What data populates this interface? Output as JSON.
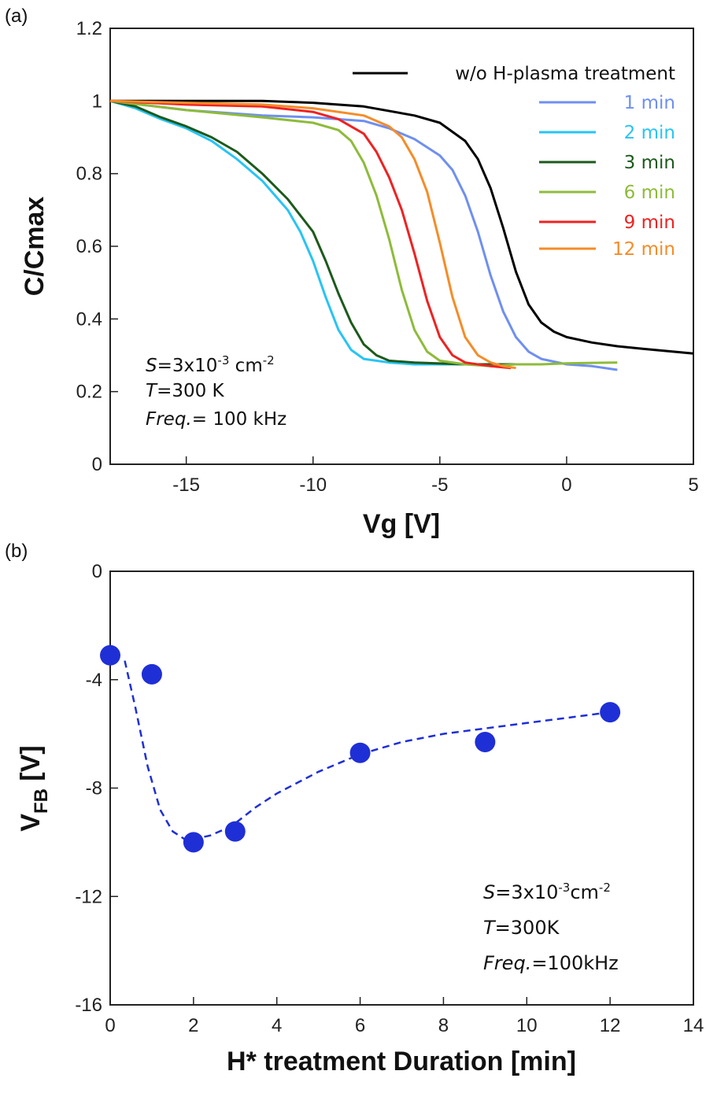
{
  "panel_labels": {
    "a": "(a)",
    "b": "(b)"
  },
  "chart_data": [
    {
      "type": "line",
      "xlabel": "Vg [V]",
      "ylabel": "C/Cmax",
      "xlim": [
        -18,
        5
      ],
      "ylim": [
        0,
        1.2
      ],
      "xticks": [
        -15,
        -10,
        -5,
        0,
        5
      ],
      "yticks": [
        0,
        0.2,
        0.4,
        0.6,
        0.8,
        1,
        1.2
      ],
      "ytick_labels": [
        "0",
        "0.2",
        "0.4",
        "0.6",
        "0.8",
        "1",
        "1.2"
      ],
      "legend_position": "top-right",
      "annotation": {
        "line1_italic": "S",
        "line1": "=3x10",
        "line1_sup1": "-3",
        "line1_b": " cm",
        "line1_sup2": "-2",
        "line2_italic": "T",
        "line2": "=300 K",
        "line3_italic": "Freq.",
        "line3": "= 100 kHz"
      },
      "series": [
        {
          "name": "w/o H-plasma treatment",
          "color": "#000000",
          "x": [
            -18,
            -15,
            -12,
            -10,
            -8,
            -6,
            -5,
            -4,
            -3.5,
            -3,
            -2.5,
            -2,
            -1.5,
            -1,
            -0.5,
            0,
            1,
            2,
            3,
            5
          ],
          "y": [
            1.0,
            1.0,
            1.0,
            0.995,
            0.985,
            0.96,
            0.94,
            0.89,
            0.84,
            0.76,
            0.65,
            0.53,
            0.44,
            0.39,
            0.365,
            0.35,
            0.335,
            0.325,
            0.318,
            0.305
          ]
        },
        {
          "name": "1 min",
          "color": "#6f8ff0",
          "x": [
            -18,
            -15,
            -12,
            -10,
            -8,
            -7,
            -6,
            -5,
            -4.5,
            -4,
            -3.5,
            -3,
            -2.5,
            -2,
            -1.5,
            -1,
            0,
            1,
            2
          ],
          "y": [
            1.0,
            0.975,
            0.96,
            0.955,
            0.945,
            0.925,
            0.895,
            0.85,
            0.81,
            0.74,
            0.64,
            0.52,
            0.42,
            0.35,
            0.31,
            0.29,
            0.275,
            0.27,
            0.26
          ]
        },
        {
          "name": "2 min",
          "color": "#28c4f4",
          "x": [
            -18,
            -17,
            -16,
            -15,
            -14,
            -13,
            -12,
            -11,
            -10.5,
            -10,
            -9.5,
            -9,
            -8.5,
            -8,
            -7,
            -6,
            -4,
            -2
          ],
          "y": [
            1.0,
            0.98,
            0.95,
            0.925,
            0.89,
            0.84,
            0.78,
            0.7,
            0.64,
            0.56,
            0.46,
            0.37,
            0.315,
            0.29,
            0.28,
            0.275,
            0.275,
            0.275
          ]
        },
        {
          "name": "3 min",
          "color": "#1c5a1c",
          "x": [
            -18,
            -17,
            -16,
            -15,
            -14,
            -13,
            -12,
            -11,
            -10,
            -9.5,
            -9,
            -8.5,
            -8,
            -7.5,
            -7,
            -6,
            -4,
            -2
          ],
          "y": [
            1.0,
            0.985,
            0.955,
            0.93,
            0.9,
            0.86,
            0.8,
            0.73,
            0.64,
            0.56,
            0.47,
            0.39,
            0.33,
            0.3,
            0.285,
            0.28,
            0.275,
            0.275
          ]
        },
        {
          "name": "6 min",
          "color": "#8ebb3a",
          "x": [
            -18,
            -15,
            -12,
            -10,
            -9,
            -8.5,
            -8,
            -7.5,
            -7,
            -6.5,
            -6,
            -5.5,
            -5,
            -4,
            -3,
            -2,
            -1,
            0,
            2
          ],
          "y": [
            1.0,
            0.975,
            0.955,
            0.94,
            0.92,
            0.89,
            0.83,
            0.74,
            0.62,
            0.48,
            0.37,
            0.31,
            0.285,
            0.275,
            0.27,
            0.275,
            0.275,
            0.278,
            0.28
          ]
        },
        {
          "name": "9 min",
          "color": "#ee2222",
          "x": [
            -18,
            -15,
            -12,
            -10,
            -9,
            -8,
            -7.5,
            -7,
            -6.5,
            -6,
            -5.5,
            -5,
            -4.5,
            -4,
            -3,
            -2.2
          ],
          "y": [
            1.0,
            0.99,
            0.985,
            0.97,
            0.95,
            0.91,
            0.86,
            0.79,
            0.7,
            0.58,
            0.45,
            0.35,
            0.3,
            0.28,
            0.27,
            0.265
          ]
        },
        {
          "name": "12 min",
          "color": "#f58c28",
          "x": [
            -18,
            -15,
            -12,
            -10,
            -8,
            -7,
            -6.5,
            -6,
            -5.5,
            -5,
            -4.5,
            -4,
            -3.5,
            -3,
            -2.5,
            -2
          ],
          "y": [
            1.0,
            0.995,
            0.99,
            0.98,
            0.96,
            0.93,
            0.9,
            0.84,
            0.75,
            0.61,
            0.46,
            0.35,
            0.3,
            0.28,
            0.27,
            0.265
          ]
        }
      ]
    },
    {
      "type": "scatter",
      "xlabel": "H* treatment Duration [min]",
      "ylabel": "V",
      "ylabel_sub": "FB",
      "ylabel_tail": " [V]",
      "xlim": [
        0,
        14
      ],
      "ylim": [
        -16,
        0
      ],
      "xticks": [
        0,
        2,
        4,
        6,
        8,
        10,
        12,
        14
      ],
      "yticks": [
        0,
        -4,
        -8,
        -12,
        -16
      ],
      "marker_color": "#1f2fd6",
      "points": {
        "x": [
          0,
          1,
          2,
          3,
          6,
          9,
          12
        ],
        "y": [
          -3.1,
          -3.8,
          -10.0,
          -9.6,
          -6.7,
          -6.3,
          -5.2
        ]
      },
      "fit_line": {
        "style": "dashed",
        "x": [
          0.35,
          0.6,
          0.9,
          1.2,
          1.5,
          1.8,
          2.1,
          2.4,
          2.7,
          3.0,
          3.5,
          4.0,
          5.0,
          6.0,
          7.0,
          8.0,
          9.0,
          10.0,
          11.0,
          12.0
        ],
        "y": [
          -3.3,
          -5.0,
          -7.2,
          -8.8,
          -9.6,
          -9.9,
          -9.85,
          -9.75,
          -9.55,
          -9.3,
          -8.7,
          -8.2,
          -7.4,
          -6.75,
          -6.3,
          -6.0,
          -5.8,
          -5.6,
          -5.4,
          -5.2
        ]
      },
      "annotation": {
        "line1_italic": "S",
        "line1": "=3x10",
        "line1_sup1": "-3",
        "line1_b": "cm",
        "line1_sup2": "-2",
        "line2_italic": "T",
        "line2": "=300K",
        "line3_italic": "Freq.",
        "line3": "=100kHz"
      }
    }
  ]
}
